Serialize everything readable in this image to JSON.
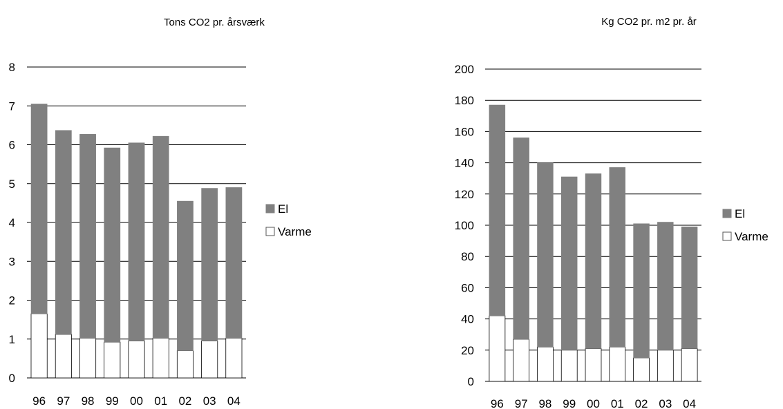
{
  "colors": {
    "el": "#808080",
    "varme": "#ffffff",
    "outline": "#000000",
    "grid": "#000000"
  },
  "chart_data": [
    {
      "type": "bar",
      "stacked": true,
      "title": "Tons CO2 pr. årsværk",
      "categories": [
        "96",
        "97",
        "98",
        "99",
        "00",
        "01",
        "02",
        "03",
        "04"
      ],
      "ylim": [
        0,
        8
      ],
      "yticks": [
        0,
        1,
        2,
        3,
        4,
        5,
        6,
        7,
        8
      ],
      "ytick_labels": [
        "0",
        "1",
        "2",
        "3",
        "4",
        "5",
        "6",
        "7",
        "8"
      ],
      "grid": true,
      "legend_position": "right",
      "series": [
        {
          "name": "Varme",
          "values": [
            1.65,
            1.12,
            1.02,
            0.92,
            0.95,
            1.02,
            0.7,
            0.95,
            1.02
          ]
        },
        {
          "name": "El",
          "values": [
            5.4,
            5.25,
            5.25,
            5.0,
            5.1,
            5.2,
            3.85,
            3.93,
            3.88
          ]
        }
      ],
      "legend": [
        "El",
        "Varme"
      ]
    },
    {
      "type": "bar",
      "stacked": true,
      "title": "Kg CO2 pr. m2 pr. år",
      "categories": [
        "96",
        "97",
        "98",
        "99",
        "00",
        "01",
        "02",
        "03",
        "04"
      ],
      "ylim": [
        0,
        200
      ],
      "yticks": [
        0,
        20,
        40,
        60,
        80,
        100,
        120,
        140,
        160,
        180,
        200
      ],
      "ytick_labels": [
        "0",
        "20",
        "40",
        "60",
        "80",
        "100",
        "120",
        "140",
        "160",
        "180",
        "200"
      ],
      "grid": true,
      "legend_position": "right",
      "series": [
        {
          "name": "Varme",
          "values": [
            42,
            27,
            22,
            20,
            21,
            22,
            15,
            20,
            21
          ]
        },
        {
          "name": "El",
          "values": [
            135,
            129,
            118,
            111,
            112,
            115,
            86,
            82,
            78
          ]
        }
      ],
      "legend": [
        "El",
        "Varme"
      ]
    }
  ]
}
